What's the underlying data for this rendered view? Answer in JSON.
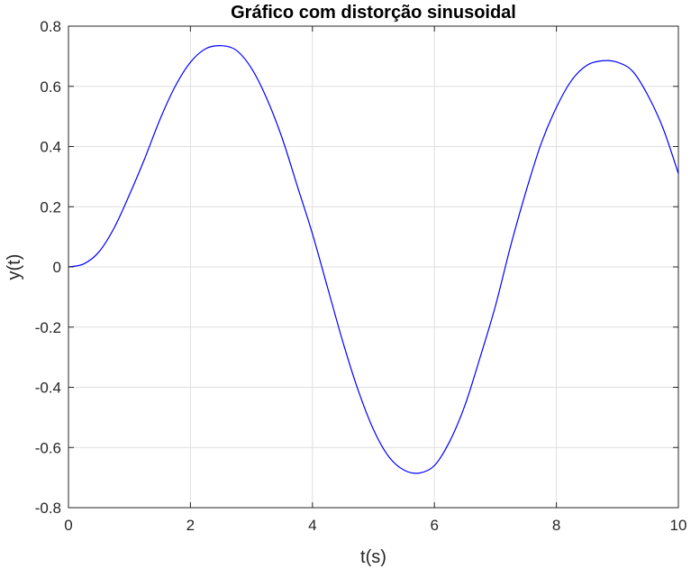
{
  "chart_data": {
    "type": "line",
    "title": "Gráfico com distorção sinusoidal",
    "xlabel": "t(s)",
    "ylabel": "y(t)",
    "xlim": [
      0,
      10
    ],
    "ylim": [
      -0.8,
      0.8
    ],
    "grid": true,
    "xticks": [
      0,
      2,
      4,
      6,
      8,
      10
    ],
    "xtick_labels": [
      "0",
      "2",
      "4",
      "6",
      "8",
      "10"
    ],
    "yticks": [
      0.8,
      0.6,
      0.4,
      0.2,
      0,
      -0.2,
      -0.4,
      -0.6,
      -0.8
    ],
    "ytick_labels": [
      "0.8",
      "0.6",
      "0.4",
      "0.2",
      "0",
      "-0.2",
      "-0.4",
      "-0.6",
      "-0.8"
    ],
    "series": [
      {
        "color": "#0000ff",
        "x": [
          0,
          0.25,
          0.5,
          0.75,
          1,
          1.25,
          1.5,
          1.75,
          2,
          2.25,
          2.5,
          2.75,
          3,
          3.25,
          3.5,
          3.75,
          4,
          4.25,
          4.5,
          4.75,
          5,
          5.25,
          5.5,
          5.75,
          6,
          6.25,
          6.5,
          6.75,
          7,
          7.25,
          7.5,
          7.75,
          8,
          8.25,
          8.5,
          8.75,
          9,
          9.25,
          9.5,
          9.75,
          10
        ],
        "y": [
          0,
          0.01,
          0.05,
          0.13,
          0.24,
          0.36,
          0.49,
          0.6,
          0.68,
          0.725,
          0.735,
          0.72,
          0.66,
          0.56,
          0.43,
          0.27,
          0.11,
          -0.07,
          -0.25,
          -0.41,
          -0.54,
          -0.63,
          -0.675,
          -0.685,
          -0.66,
          -0.58,
          -0.46,
          -0.3,
          -0.13,
          0.07,
          0.25,
          0.41,
          0.53,
          0.62,
          0.67,
          0.685,
          0.68,
          0.65,
          0.57,
          0.46,
          0.31
        ]
      }
    ]
  }
}
